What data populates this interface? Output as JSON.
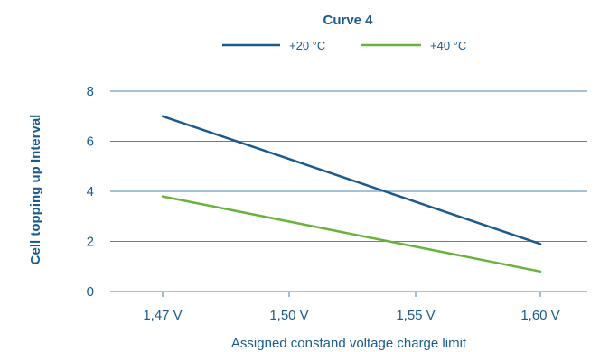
{
  "chart_data": {
    "type": "line",
    "title": "Curve 4",
    "xlabel": "Assigned constand voltage charge limit",
    "ylabel": "Cell topping up Interval",
    "categories": [
      "1,47 V",
      "1,50 V",
      "1,55 V",
      "1,60 V"
    ],
    "x_endpoints": [
      1.47,
      1.6
    ],
    "ylim": [
      0,
      8
    ],
    "yticks": [
      "0",
      "2",
      "4",
      "6",
      "8"
    ],
    "grid": true,
    "legend_position": "top-center",
    "series": [
      {
        "name": "+20 °C",
        "color": "#1a5a8e",
        "x": [
          1.47,
          1.6
        ],
        "y": [
          7.0,
          1.9
        ]
      },
      {
        "name": "+40 °C",
        "color": "#6ab23e",
        "x": [
          1.47,
          1.6
        ],
        "y": [
          3.8,
          0.8
        ]
      }
    ]
  }
}
